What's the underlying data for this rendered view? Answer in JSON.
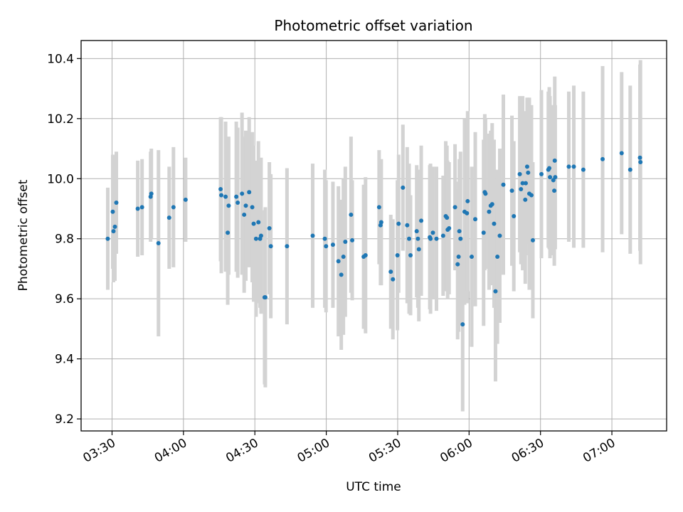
{
  "chart_data": {
    "type": "scatter",
    "title": "Photometric offset variation",
    "xlabel": "UTC time",
    "ylabel": "Photometric offset",
    "x_ticks": [
      "03:30",
      "04:00",
      "04:30",
      "05:00",
      "05:30",
      "06:00",
      "06:30",
      "07:00"
    ],
    "y_ticks": [
      "9.2",
      "9.4",
      "9.6",
      "9.8",
      "10.0",
      "10.2",
      "10.4"
    ],
    "xlim": [
      "03:17",
      "07:23"
    ],
    "ylim": [
      9.16,
      10.46
    ],
    "grid": true,
    "errorbar_color": "#d3d3d3",
    "point_color": "#1f77b4",
    "points": [
      [
        "03:28:12",
        9.8,
        0.17
      ],
      [
        "03:30:18",
        9.89,
        0.19
      ],
      [
        "03:30:36",
        9.825,
        0.17
      ],
      [
        "03:31:12",
        9.84,
        0.18
      ],
      [
        "03:31:48",
        9.92,
        0.17
      ],
      [
        "03:40:48",
        9.9,
        0.16
      ],
      [
        "03:42:36",
        9.905,
        0.16
      ],
      [
        "03:46:12",
        9.94,
        0.15
      ],
      [
        "03:46:30",
        9.95,
        0.15
      ],
      [
        "03:49:30",
        9.785,
        0.31
      ],
      [
        "03:54:00",
        9.87,
        0.17
      ],
      [
        "03:55:48",
        9.905,
        0.2
      ],
      [
        "04:00:54",
        9.93,
        0.14
      ],
      [
        "04:15:36",
        9.965,
        0.24
      ],
      [
        "04:15:54",
        9.945,
        0.26
      ],
      [
        "04:17:42",
        9.94,
        0.25
      ],
      [
        "04:18:36",
        9.82,
        0.24
      ],
      [
        "04:19:00",
        9.91,
        0.23
      ],
      [
        "04:22:12",
        9.94,
        0.25
      ],
      [
        "04:22:48",
        9.92,
        0.25
      ],
      [
        "04:24:36",
        9.95,
        0.27
      ],
      [
        "04:25:30",
        9.88,
        0.26
      ],
      [
        "04:26:12",
        9.91,
        0.25
      ],
      [
        "04:27:36",
        9.955,
        0.25
      ],
      [
        "04:28:54",
        9.905,
        0.25
      ],
      [
        "04:29:30",
        9.85,
        0.26
      ],
      [
        "04:30:30",
        9.8,
        0.26
      ],
      [
        "04:31:30",
        9.855,
        0.27
      ],
      [
        "04:32:12",
        9.8,
        0.23
      ],
      [
        "04:32:36",
        9.81,
        0.26
      ],
      [
        "04:34:06",
        9.605,
        0.29
      ],
      [
        "04:34:24",
        9.605,
        0.3
      ],
      [
        "04:36:06",
        9.835,
        0.22
      ],
      [
        "04:36:42",
        9.775,
        0.24
      ],
      [
        "04:43:30",
        9.775,
        0.26
      ],
      [
        "04:54:18",
        9.81,
        0.24
      ],
      [
        "04:59:24",
        9.8,
        0.23
      ],
      [
        "04:59:54",
        9.775,
        0.22
      ],
      [
        "05:02:48",
        9.78,
        0.21
      ],
      [
        "05:05:06",
        9.725,
        0.25
      ],
      [
        "05:06:18",
        9.68,
        0.25
      ],
      [
        "05:07:12",
        9.74,
        0.26
      ],
      [
        "05:08:00",
        9.79,
        0.25
      ],
      [
        "05:10:24",
        9.88,
        0.26
      ],
      [
        "05:10:54",
        9.795,
        0.2
      ],
      [
        "05:15:42",
        9.74,
        0.24
      ],
      [
        "05:16:30",
        9.745,
        0.26
      ],
      [
        "05:22:12",
        9.905,
        0.19
      ],
      [
        "05:22:48",
        9.845,
        0.2
      ],
      [
        "05:23:06",
        9.855,
        0.21
      ],
      [
        "05:27:06",
        9.69,
        0.19
      ],
      [
        "05:28:00",
        9.665,
        0.2
      ],
      [
        "05:29:54",
        9.745,
        0.25
      ],
      [
        "05:30:24",
        9.85,
        0.23
      ],
      [
        "05:32:12",
        9.97,
        0.21
      ],
      [
        "05:34:00",
        9.845,
        0.26
      ],
      [
        "05:35:24",
        9.745,
        0.2
      ],
      [
        "05:34:48",
        9.8,
        0.25
      ],
      [
        "05:38:00",
        9.825,
        0.22
      ],
      [
        "05:38:30",
        9.8,
        0.23
      ],
      [
        "05:38:54",
        9.765,
        0.24
      ],
      [
        "05:39:54",
        9.86,
        0.25
      ],
      [
        "05:43:30",
        9.805,
        0.24
      ],
      [
        "05:43:48",
        9.8,
        0.25
      ],
      [
        "05:44:48",
        9.82,
        0.22
      ],
      [
        "05:46:18",
        9.8,
        0.24
      ],
      [
        "05:49:06",
        9.81,
        0.2
      ],
      [
        "05:50:12",
        9.875,
        0.25
      ],
      [
        "05:50:42",
        9.87,
        0.24
      ],
      [
        "05:51:00",
        9.83,
        0.23
      ],
      [
        "05:51:36",
        9.835,
        0.22
      ],
      [
        "05:54:06",
        9.905,
        0.21
      ],
      [
        "05:55:12",
        9.715,
        0.25
      ],
      [
        "05:55:36",
        9.74,
        0.25
      ],
      [
        "05:55:54",
        9.825,
        0.24
      ],
      [
        "05:56:24",
        9.8,
        0.29
      ],
      [
        "05:57:18",
        9.515,
        0.29
      ],
      [
        "05:58:06",
        9.89,
        0.31
      ],
      [
        "05:59:06",
        9.885,
        0.3
      ],
      [
        "05:59:24",
        9.925,
        0.3
      ],
      [
        "06:01:06",
        9.74,
        0.3
      ],
      [
        "06:02:36",
        9.865,
        0.29
      ],
      [
        "06:06:06",
        9.82,
        0.31
      ],
      [
        "06:06:36",
        9.955,
        0.26
      ],
      [
        "06:06:54",
        9.95,
        0.25
      ],
      [
        "06:08:24",
        9.89,
        0.26
      ],
      [
        "06:09:06",
        9.91,
        0.25
      ],
      [
        "06:09:42",
        9.915,
        0.27
      ],
      [
        "06:10:30",
        9.85,
        0.28
      ],
      [
        "06:11:06",
        9.625,
        0.3
      ],
      [
        "06:11:54",
        9.74,
        0.29
      ],
      [
        "06:12:54",
        9.81,
        0.29
      ],
      [
        "06:14:24",
        9.98,
        0.3
      ],
      [
        "06:18:00",
        9.96,
        0.25
      ],
      [
        "06:18:48",
        9.875,
        0.25
      ],
      [
        "06:21:18",
        10.015,
        0.26
      ],
      [
        "06:21:48",
        9.965,
        0.25
      ],
      [
        "06:22:30",
        9.985,
        0.29
      ],
      [
        "06:23:36",
        9.93,
        0.28
      ],
      [
        "06:23:48",
        9.985,
        0.24
      ],
      [
        "06:24:24",
        10.04,
        0.23
      ],
      [
        "06:24:48",
        10.02,
        0.24
      ],
      [
        "06:25:18",
        9.95,
        0.32
      ],
      [
        "06:26:12",
        9.945,
        0.3
      ],
      [
        "06:26:48",
        9.795,
        0.26
      ],
      [
        "06:30:24",
        10.015,
        0.28
      ],
      [
        "06:33:18",
        10.03,
        0.26
      ],
      [
        "06:33:42",
        10.035,
        0.27
      ],
      [
        "06:34:00",
        10.005,
        0.27
      ],
      [
        "06:35:24",
        9.995,
        0.25
      ],
      [
        "06:35:48",
        9.96,
        0.25
      ],
      [
        "06:36:00",
        10.06,
        0.28
      ],
      [
        "06:36:12",
        10.005,
        0.24
      ],
      [
        "06:41:54",
        10.04,
        0.25
      ],
      [
        "06:44:00",
        10.04,
        0.27
      ],
      [
        "06:48:00",
        10.03,
        0.26
      ],
      [
        "06:56:06",
        10.065,
        0.31
      ],
      [
        "07:04:06",
        10.085,
        0.27
      ],
      [
        "07:07:42",
        10.03,
        0.28
      ],
      [
        "07:11:48",
        10.07,
        0.31
      ],
      [
        "07:12:00",
        10.055,
        0.34
      ]
    ]
  }
}
